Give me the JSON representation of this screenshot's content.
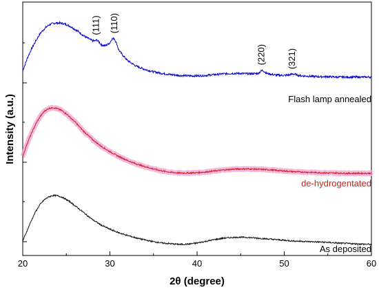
{
  "chart_data": {
    "type": "line",
    "xlabel": "2θ (degree)",
    "ylabel": "Intensity (a.u.)",
    "xlim": [
      20,
      60
    ],
    "x_ticks": [
      "20",
      "30",
      "40",
      "50",
      "60"
    ],
    "y_tick_labels": "none",
    "grid": false,
    "legend": "inline labels at right",
    "series": [
      {
        "name": "Flash lamp annealed",
        "color": "#0000cc",
        "x": [
          20,
          20.5,
          21,
          21.5,
          22,
          22.5,
          23,
          23.5,
          24,
          24.5,
          25,
          25.5,
          26,
          26.5,
          27,
          27.5,
          28,
          28.3,
          28.5,
          28.8,
          29,
          29.5,
          30,
          30.2,
          30.5,
          30.8,
          31,
          31.5,
          32,
          33,
          34,
          35,
          36,
          37,
          38,
          39,
          40,
          41,
          42,
          43,
          44,
          45,
          46,
          47,
          47.5,
          48,
          49,
          50,
          50.5,
          51,
          51.5,
          52,
          53,
          54,
          55,
          56,
          57,
          58,
          59,
          60
        ],
        "values": [
          0.29,
          0.44,
          0.56,
          0.66,
          0.75,
          0.81,
          0.855,
          0.875,
          0.88,
          0.875,
          0.86,
          0.835,
          0.8,
          0.765,
          0.72,
          0.69,
          0.66,
          0.66,
          0.67,
          0.64,
          0.61,
          0.6,
          0.635,
          0.68,
          0.69,
          0.62,
          0.55,
          0.48,
          0.42,
          0.35,
          0.31,
          0.28,
          0.26,
          0.245,
          0.235,
          0.23,
          0.23,
          0.235,
          0.245,
          0.255,
          0.26,
          0.26,
          0.255,
          0.26,
          0.3,
          0.26,
          0.24,
          0.235,
          0.24,
          0.255,
          0.24,
          0.23,
          0.225,
          0.22,
          0.22,
          0.215,
          0.215,
          0.215,
          0.215,
          0.215
        ]
      },
      {
        "name": "de-hydrogentated",
        "color": "#cc2222",
        "x": [
          20,
          20.5,
          21,
          21.5,
          22,
          22.5,
          23,
          23.5,
          24,
          24.5,
          25,
          25.5,
          26,
          26.5,
          27,
          27.5,
          28,
          29,
          30,
          31,
          32,
          33,
          34,
          35,
          36,
          37,
          38,
          39,
          40,
          41,
          42,
          43,
          44,
          45,
          46,
          47,
          48,
          49,
          50,
          51,
          52,
          53,
          54,
          55,
          56,
          57,
          58,
          59,
          60
        ],
        "values": [
          0.26,
          0.45,
          0.6,
          0.74,
          0.85,
          0.93,
          0.97,
          0.98,
          0.965,
          0.935,
          0.89,
          0.83,
          0.77,
          0.7,
          0.63,
          0.57,
          0.51,
          0.41,
          0.33,
          0.26,
          0.2,
          0.15,
          0.11,
          0.075,
          0.045,
          0.025,
          0.015,
          0.015,
          0.02,
          0.03,
          0.045,
          0.06,
          0.07,
          0.075,
          0.075,
          0.07,
          0.065,
          0.055,
          0.045,
          0.035,
          0.03,
          0.025,
          0.02,
          0.015,
          0.015,
          0.01,
          0.01,
          0.01,
          0.01
        ]
      },
      {
        "name": "As deposited",
        "color": "#111111",
        "x": [
          20,
          20.5,
          21,
          21.5,
          22,
          22.5,
          23,
          23.5,
          24,
          24.5,
          25,
          25.5,
          26,
          26.5,
          27,
          27.5,
          28,
          29,
          30,
          31,
          32,
          33,
          34,
          35,
          36,
          37,
          38,
          39,
          40,
          41,
          42,
          43,
          44,
          45,
          46,
          47,
          48,
          49,
          50,
          51,
          52,
          53,
          54,
          55,
          56,
          57,
          58,
          59,
          60
        ],
        "values": [
          0.03,
          0.18,
          0.33,
          0.46,
          0.56,
          0.63,
          0.67,
          0.69,
          0.685,
          0.665,
          0.63,
          0.59,
          0.54,
          0.49,
          0.44,
          0.39,
          0.34,
          0.26,
          0.2,
          0.15,
          0.11,
          0.075,
          0.045,
          0.02,
          0.0,
          -0.01,
          -0.02,
          -0.015,
          0.0,
          0.025,
          0.05,
          0.07,
          0.08,
          0.085,
          0.08,
          0.07,
          0.06,
          0.05,
          0.04,
          0.03,
          0.025,
          0.02,
          0.015,
          0.01,
          0.0,
          -0.005,
          -0.01,
          -0.015,
          -0.02
        ]
      }
    ],
    "annotations": [
      {
        "text": "(111)",
        "x": 28.4,
        "series": 0,
        "y": 0.68
      },
      {
        "text": "(110)",
        "x": 30.5,
        "series": 0,
        "y": 0.7
      },
      {
        "text": "(220)",
        "x": 47.4,
        "series": 0,
        "y": 0.31
      },
      {
        "text": "(321)",
        "x": 50.9,
        "series": 0,
        "y": 0.26
      }
    ]
  }
}
